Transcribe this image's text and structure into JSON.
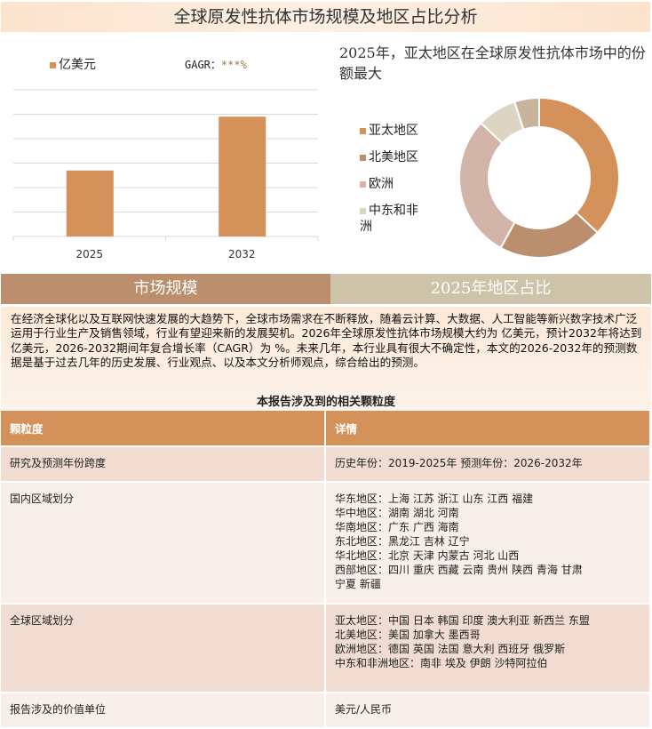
{
  "title": "全球原发性抗体市场规模及地区占比分析",
  "bar_legend": "亿美元",
  "cagr_label": "GAGR：",
  "cagr_value": "***%",
  "pie_title": "2025年，亚太地区在全球原发性抗体市场中的份额最大",
  "tabs": [
    "市场规模",
    "2025年地区占比"
  ],
  "paragraph": "在经济全球化以及互联网快速发展的大趋势下，全球市场需求在不断释放，随着云计算、大数据、人工智能等新兴数字技术广泛运用于行业生产及销售领域，行业有望迎来新的发展契机。2026年全球原发性抗体市场规模大约为 亿美元，预计2032年将达到 亿美元，2026-2032期间年复合增长率（CAGR）为 %。未来几年，本行业具有很大不确定性，本文的2026-2032年的预测数据是基于过去几年的历史发展、行业观点、以及本文分析师观点，综合给出的预测。",
  "table_title": "本报告涉及到的相关颗粒度",
  "table": {
    "headers": [
      "颗粒度",
      "详情"
    ],
    "rows": [
      {
        "k": "研究及预测年份跨度",
        "v": "历史年份：2019-2025年 预测年份：2026-2032年"
      },
      {
        "k": "国内区域划分",
        "v": "华东地区：上海  江苏  浙江  山东  江西  福建\n华中地区：湖南  湖北  河南\n华南地区：广东  广西  海南\n东北地区：黑龙江  吉林  辽宁\n华北地区：北京  天津  内蒙古  河北  山西\n西部地区：四川  重庆  西藏  云南  贵州  陕西  青海  甘肃\n宁夏  新疆"
      },
      {
        "k": "全球区域划分",
        "v": "亚太地区：中国  日本  韩国  印度  澳大利亚  新西兰  东盟\n北美地区：美国  加拿大  墨西哥\n欧洲地区：德国  英国  法国  意大利  西班牙  俄罗斯\n中东和非洲地区：南非  埃及  伊朗  沙特阿拉伯"
      },
      {
        "k": "报告涉及的价值单位",
        "v": "美元/人民币"
      }
    ]
  },
  "chart_data": [
    {
      "type": "bar",
      "categories": [
        "2025",
        "2032"
      ],
      "values": [
        2.7,
        4.9
      ],
      "ylim": [
        0,
        6
      ],
      "grid": true,
      "series": [
        {
          "name": "亿美元",
          "color": "#d4915a"
        }
      ]
    },
    {
      "type": "pie",
      "donut": true,
      "labels": [
        "亚太地区",
        "北美地区",
        "欧洲",
        "中东和非洲",
        ""
      ],
      "values": [
        37,
        21,
        29,
        8,
        5
      ],
      "colors": [
        "#d4915a",
        "#bb8f6e",
        "#d2b4a8",
        "#ddd5c4",
        "#c8b49a"
      ],
      "legend": "left"
    }
  ]
}
